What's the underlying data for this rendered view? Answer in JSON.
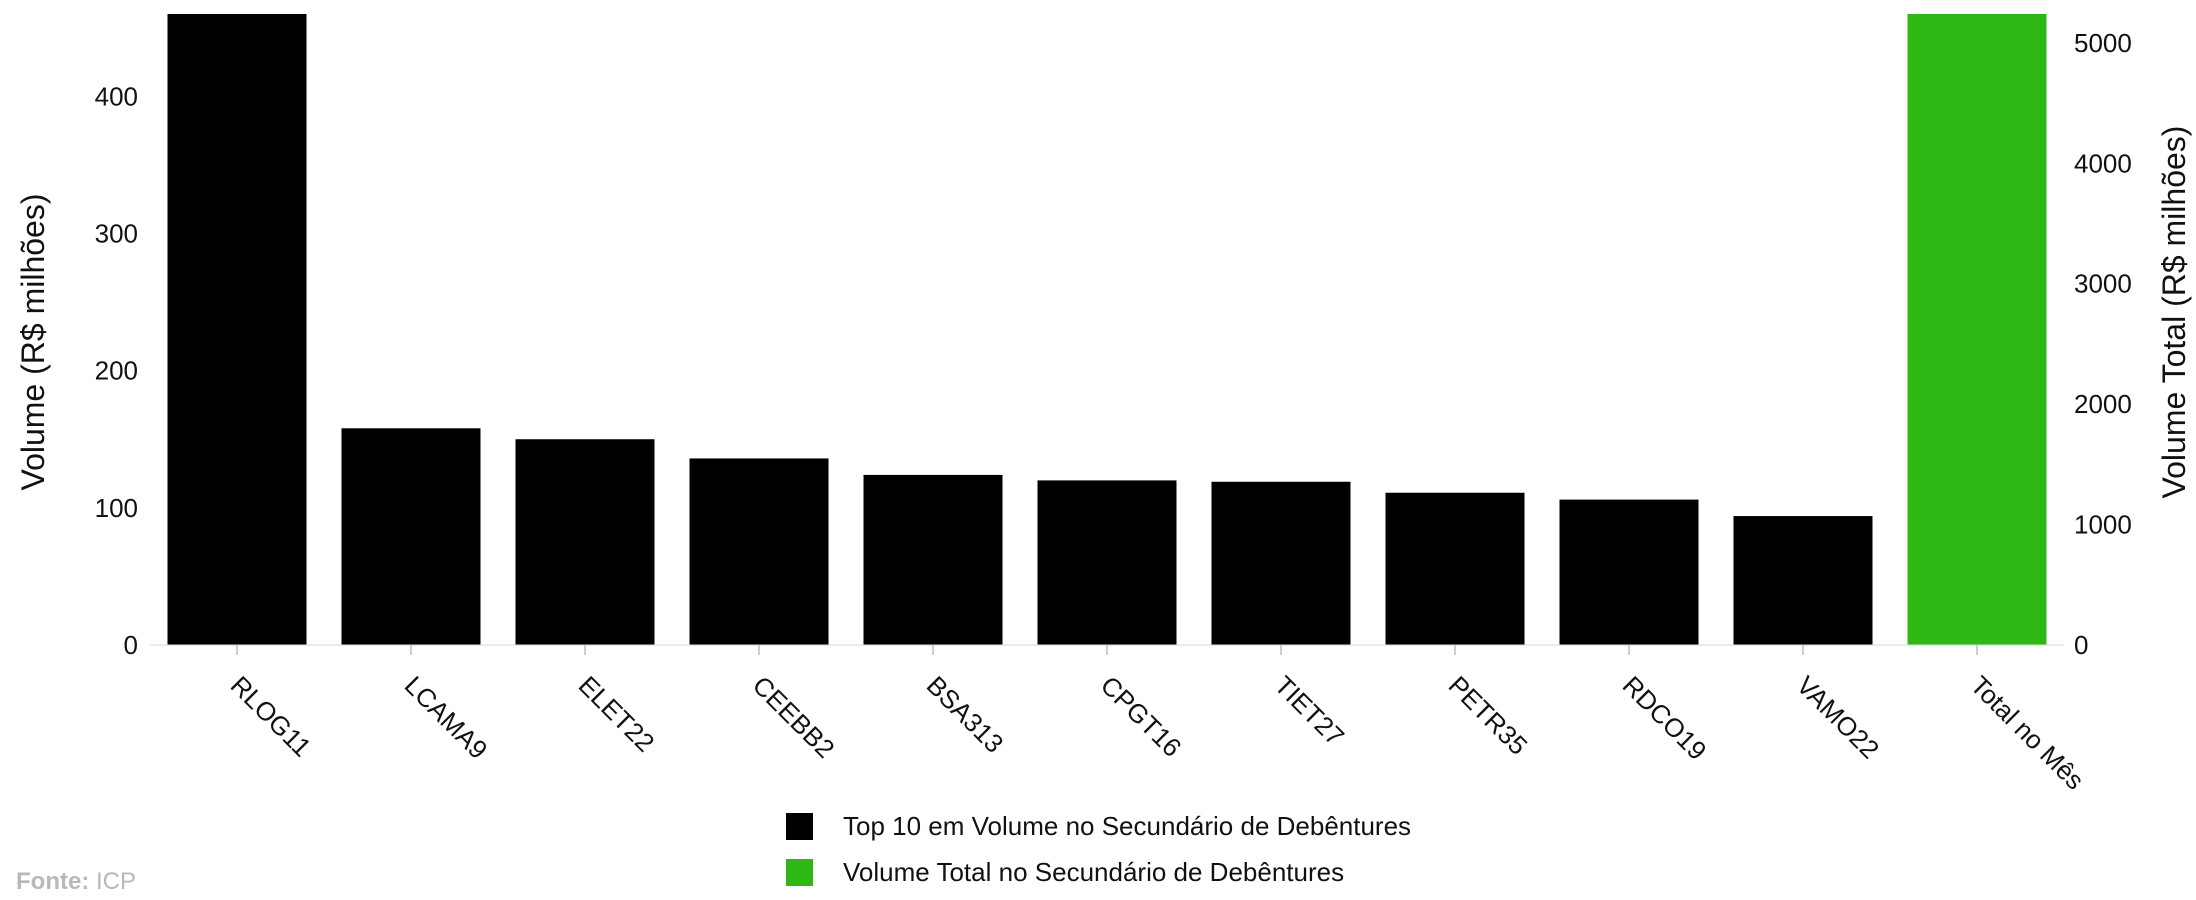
{
  "chart_data": {
    "type": "bar",
    "categories": [
      "RLOG11",
      "LCAMA9",
      "ELET22",
      "CEEBB2",
      "BSA313",
      "CPGT16",
      "TIET27",
      "PETR35",
      "RDCO19",
      "VAMO22",
      "Total no Mês"
    ],
    "series": [
      {
        "name": "Top 10 em Volume no Secundário de Debêntures",
        "axis": "left",
        "color": "#000000",
        "values": [
          460,
          158,
          150,
          136,
          124,
          120,
          119,
          111,
          106,
          94,
          null
        ]
      },
      {
        "name": "Volume Total no Secundário de Debêntures",
        "axis": "right",
        "color": "#2db814",
        "values": [
          null,
          null,
          null,
          null,
          null,
          null,
          null,
          null,
          null,
          null,
          5240
        ]
      }
    ],
    "ylabel": "Volume (R$ milhões)",
    "ylabel_right": "Volume Total (R$ milhões)",
    "yticks": [
      0,
      100,
      200,
      300,
      400
    ],
    "yticks_right": [
      0,
      1000,
      2000,
      3000,
      4000,
      5000
    ],
    "ylim": [
      0,
      460
    ],
    "ylim_right": [
      0,
      5240
    ],
    "grid": false,
    "legend_position": "bottom-center"
  },
  "legend": [
    {
      "label": "Top 10 em Volume no Secundário de Debêntures",
      "color": "#000000"
    },
    {
      "label": "Volume Total no Secundário de Debêntures",
      "color": "#2db814"
    }
  ],
  "source": {
    "label": "Fonte:",
    "value": "ICP"
  }
}
